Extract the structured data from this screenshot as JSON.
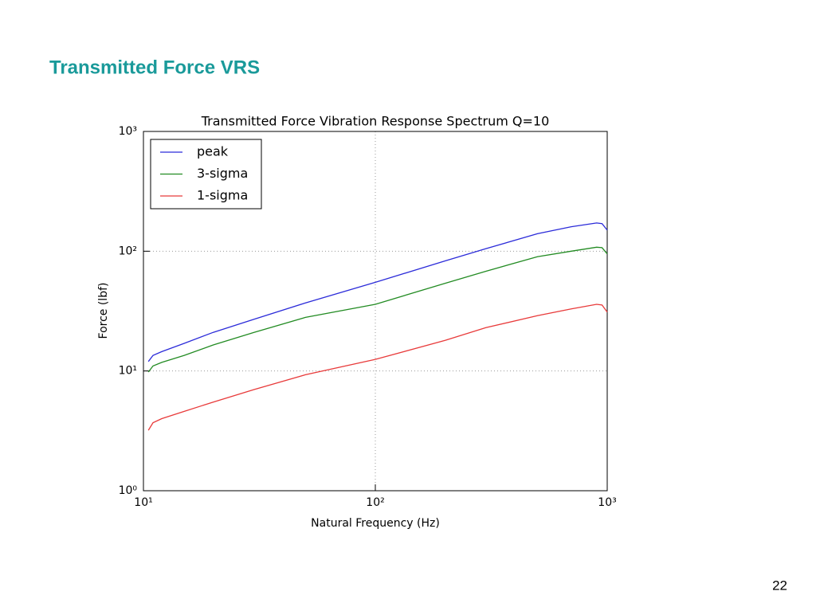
{
  "slide_title": "Transmitted Force VRS",
  "page_number": "22",
  "chart_data": {
    "type": "line",
    "title": "Transmitted Force Vibration Response Spectrum Q=10",
    "x_label": "Natural Frequency (Hz)",
    "y_label": "Force (lbf)",
    "xscale": "log",
    "yscale": "log",
    "xlim": [
      10,
      1000
    ],
    "ylim": [
      1,
      1000
    ],
    "xticks": [
      {
        "value": 10,
        "label": "10¹"
      },
      {
        "value": 100,
        "label": "10²"
      },
      {
        "value": 1000,
        "label": "10³"
      }
    ],
    "yticks": [
      {
        "value": 1,
        "label": "10⁰"
      },
      {
        "value": 10,
        "label": "10¹"
      },
      {
        "value": 100,
        "label": "10²"
      },
      {
        "value": 1000,
        "label": "10³"
      }
    ],
    "grid": true,
    "legend": "upper left",
    "x": [
      10.5,
      11,
      12,
      15,
      20,
      30,
      50,
      100,
      200,
      300,
      500,
      700,
      900,
      950,
      1000
    ],
    "series": [
      {
        "name": "peak",
        "color": "#2b2bd9",
        "values": [
          12,
          13.5,
          14.5,
          17,
          21,
          27,
          37,
          55,
          83,
          105,
          140,
          160,
          172,
          170,
          150
        ]
      },
      {
        "name": "3-sigma",
        "color": "#228b22",
        "values": [
          9.8,
          11,
          11.8,
          13.5,
          16.5,
          21,
          28,
          36,
          54,
          68,
          90,
          100,
          108,
          107,
          95
        ]
      },
      {
        "name": "1-sigma",
        "color": "#e83a3a",
        "values": [
          3.2,
          3.7,
          4,
          4.6,
          5.5,
          7,
          9.3,
          12.5,
          18,
          23,
          29,
          33,
          36,
          35.5,
          31
        ]
      }
    ]
  }
}
